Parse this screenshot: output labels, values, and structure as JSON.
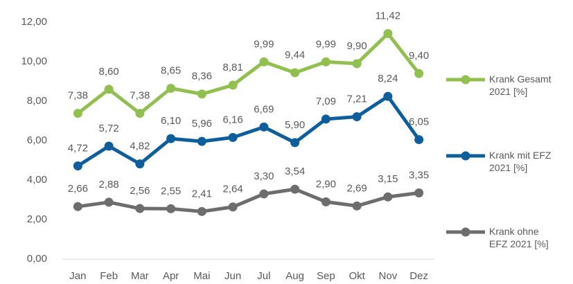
{
  "chart_data": {
    "type": "line",
    "categories": [
      "Jan",
      "Feb",
      "Mar",
      "Apr",
      "Mai",
      "Jun",
      "Jul",
      "Aug",
      "Sep",
      "Okt",
      "Nov",
      "Dez"
    ],
    "series": [
      {
        "name": "Krank Gesamt 2021 [%]",
        "color": "#92c050",
        "values": [
          7.38,
          8.6,
          7.38,
          8.65,
          8.36,
          8.81,
          9.99,
          9.44,
          9.99,
          9.9,
          11.42,
          9.4
        ],
        "value_labels": [
          "7,38",
          "8,60",
          "7,38",
          "8,65",
          "8,36",
          "8,81",
          "9,99",
          "9,44",
          "9,99",
          "9,90",
          "11,42",
          "9,40"
        ]
      },
      {
        "name": "Krank mit EFZ 2021 [%]",
        "color": "#0f5e9c",
        "values": [
          4.72,
          5.72,
          4.82,
          6.1,
          5.96,
          6.16,
          6.69,
          5.9,
          7.09,
          7.21,
          8.24,
          6.05
        ],
        "value_labels": [
          "4,72",
          "5,72",
          "4,82",
          "6,10",
          "5,96",
          "6,16",
          "6,69",
          "5,90",
          "7,09",
          "7,21",
          "8,24",
          "6,05"
        ]
      },
      {
        "name": "Krank ohne EFZ 2021 [%]",
        "color": "#6d6d6d",
        "values": [
          2.66,
          2.88,
          2.56,
          2.55,
          2.41,
          2.64,
          3.3,
          3.54,
          2.9,
          2.69,
          3.15,
          3.35
        ],
        "value_labels": [
          "2,66",
          "2,88",
          "2,56",
          "2,55",
          "2,41",
          "2,64",
          "3,30",
          "3,54",
          "2,90",
          "2,69",
          "3,15",
          "3,35"
        ]
      }
    ],
    "ylim": [
      0,
      12
    ],
    "yticks": [
      {
        "value": 0,
        "label": "0,00"
      },
      {
        "value": 2,
        "label": "2,00"
      },
      {
        "value": 4,
        "label": "4,00"
      },
      {
        "value": 6,
        "label": "6,00"
      },
      {
        "value": 8,
        "label": "8,00"
      },
      {
        "value": 10,
        "label": "10,00"
      },
      {
        "value": 12,
        "label": "12,00"
      }
    ],
    "grid": false,
    "legend": "right"
  }
}
